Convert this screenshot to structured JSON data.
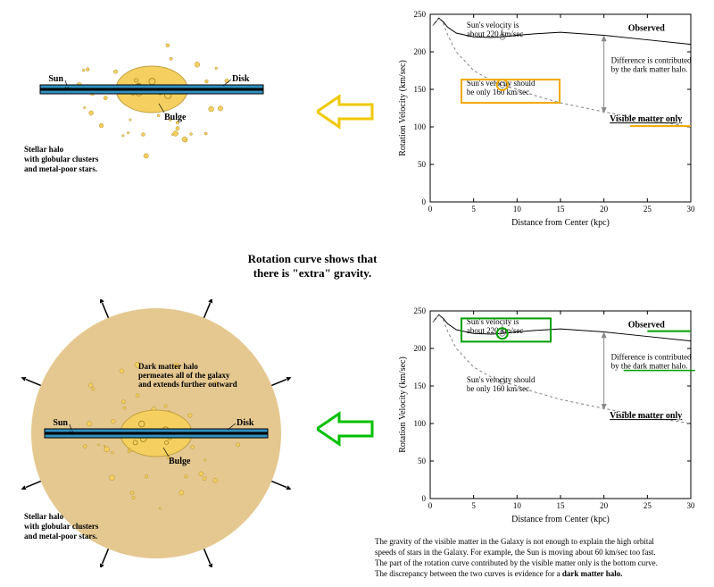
{
  "chart": {
    "type": "line",
    "xlim": [
      0,
      30
    ],
    "ylim": [
      0,
      250
    ],
    "xtick_step": 5,
    "ytick_step": 50,
    "xlabel": "Distance from Center (kpc)",
    "ylabel": "Rotation Velocity (km/sec)",
    "observed_label": "Observed",
    "visible_label": "Visible matter only",
    "observed_pts": [
      [
        0.3,
        235
      ],
      [
        1,
        245
      ],
      [
        1.5,
        240
      ],
      [
        2,
        233
      ],
      [
        3,
        225
      ],
      [
        5,
        220
      ],
      [
        7,
        219
      ],
      [
        8.3,
        220
      ],
      [
        10,
        222
      ],
      [
        12,
        224
      ],
      [
        15,
        226
      ],
      [
        20,
        222
      ],
      [
        25,
        216
      ],
      [
        30,
        210
      ]
    ],
    "visible_pts": [
      [
        0.3,
        235
      ],
      [
        1,
        245
      ],
      [
        1.5,
        238
      ],
      [
        2,
        223
      ],
      [
        3,
        200
      ],
      [
        5,
        175
      ],
      [
        7,
        162
      ],
      [
        8.3,
        156
      ],
      [
        10,
        150
      ],
      [
        12,
        142
      ],
      [
        15,
        132
      ],
      [
        20,
        120
      ],
      [
        25,
        109
      ],
      [
        30,
        100
      ]
    ],
    "anno_is": "Sun's velocity is\nabout 220 km/sec",
    "anno_should": "Sun's velocity should\nbe only 160 km/sec",
    "anno_diff": "Difference is contributed\nby the dark matter halo.",
    "axis_color": "#000000",
    "observed_color": "#000000",
    "visible_color": "#808080",
    "box_color_top": "#f0a800",
    "box_color_bot": "#00a000",
    "tick_fontsize": 9,
    "label_fontsize": 10,
    "anno_fontsize": 9
  },
  "arrow_top_color": "#f0c800",
  "arrow_bot_color": "#00c000",
  "middle_caption": "Rotation curve shows that\nthere is \"extra\" gravity.",
  "galaxy": {
    "sun_label": "Sun",
    "disk_label": "Disk",
    "bulge_label": "Bulge",
    "halo_label": "Stellar halo\nwith globular clusters\nand metal-poor stars.",
    "dark_label": "Dark matter halo\npermeates all of the galaxy\nand extends further outward",
    "bulge_color": "#f5d060",
    "disk_top": "#3090c0",
    "disk_mid": "#3090c0",
    "dark_halo_color": "#e5c890",
    "star_color": "#f5d060"
  },
  "footer1": "The gravity of the visible matter in the Galaxy is not enough to explain the high orbital",
  "footer2": "speeds of stars in the Galaxy. For example, the Sun is moving about 60 km/sec too fast.",
  "footer3": "The part of the rotation curve contributed by the visible matter only is the bottom curve.",
  "footer4": "The discrepancy between the two curves is evidence for a dark matter halo."
}
